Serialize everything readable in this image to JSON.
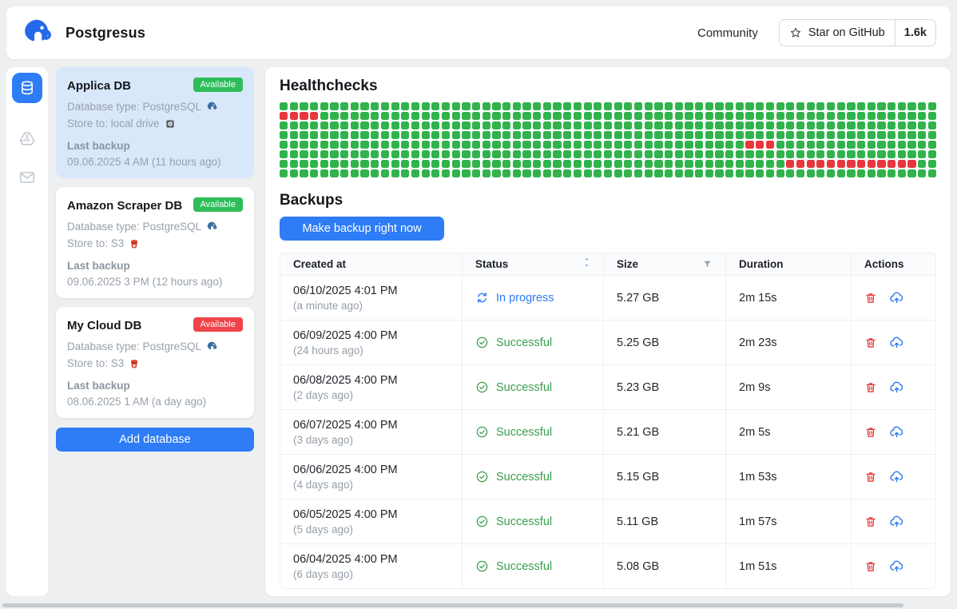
{
  "header": {
    "app_name": "Postgresus",
    "community_label": "Community",
    "github": {
      "star_label": "Star on GitHub",
      "star_count": "1.6k"
    }
  },
  "nav_rail": {
    "items": [
      {
        "icon": "database-icon",
        "active": true
      },
      {
        "icon": "google-drive-icon",
        "active": false
      },
      {
        "icon": "mail-icon",
        "active": false
      }
    ],
    "active_color": "#2e7cf6"
  },
  "database_panel": {
    "cards": [
      {
        "name": "Applica DB",
        "badge": "Available",
        "badge_color": "#2ebd59",
        "db_type": "Database type: PostgreSQL",
        "store": "Store to: local drive",
        "store_icon": "hard-drive-icon",
        "last_backup_label": "Last backup",
        "last_backup": "09.06.2025 4 AM (11 hours ago)",
        "selected": true
      },
      {
        "name": "Amazon Scraper DB",
        "badge": "Available",
        "badge_color": "#2ebd59",
        "db_type": "Database type: PostgreSQL",
        "store": "Store to: S3",
        "store_icon": "s3-icon",
        "last_backup_label": "Last backup",
        "last_backup": "09.06.2025 3 PM (12 hours ago)",
        "selected": false
      },
      {
        "name": "My Cloud DB",
        "badge": "Available",
        "badge_color": "#f04349",
        "db_type": "Database type: PostgreSQL",
        "store": "Store to: S3",
        "store_icon": "s3-icon",
        "last_backup_label": "Last backup",
        "last_backup": "08.06.2025 1 AM (a day ago)",
        "selected": false
      }
    ],
    "add_button_label": "Add database"
  },
  "healthchecks": {
    "title": "Healthchecks",
    "rows": 8,
    "cols": 65,
    "ok_color": "#31b34c",
    "fail_color": "#e8363d",
    "failures": [
      [
        1,
        0
      ],
      [
        1,
        1
      ],
      [
        1,
        2
      ],
      [
        1,
        3
      ],
      [
        4,
        46
      ],
      [
        4,
        47
      ],
      [
        4,
        48
      ],
      [
        6,
        50
      ],
      [
        6,
        51
      ],
      [
        6,
        52
      ],
      [
        6,
        53
      ],
      [
        6,
        54
      ],
      [
        6,
        55
      ],
      [
        6,
        56
      ],
      [
        6,
        57
      ],
      [
        6,
        58
      ],
      [
        6,
        59
      ],
      [
        6,
        60
      ],
      [
        6,
        61
      ],
      [
        6,
        62
      ]
    ]
  },
  "backups": {
    "title": "Backups",
    "make_backup_label": "Make backup right now",
    "table": {
      "columns": [
        "Created at",
        "Status",
        "Size",
        "Duration",
        "Actions"
      ],
      "rows": [
        {
          "date": "06/10/2025 4:01 PM",
          "ago": "(a minute ago)",
          "status": "In progress",
          "status_type": "in_progress",
          "size": "5.27 GB",
          "duration": "2m 15s"
        },
        {
          "date": "06/09/2025 4:00 PM",
          "ago": "(24 hours ago)",
          "status": "Successful",
          "status_type": "successful",
          "size": "5.25 GB",
          "duration": "2m 23s"
        },
        {
          "date": "06/08/2025 4:00 PM",
          "ago": "(2 days ago)",
          "status": "Successful",
          "status_type": "successful",
          "size": "5.23 GB",
          "duration": "2m 9s"
        },
        {
          "date": "06/07/2025 4:00 PM",
          "ago": "(3 days ago)",
          "status": "Successful",
          "status_type": "successful",
          "size": "5.21 GB",
          "duration": "2m 5s"
        },
        {
          "date": "06/06/2025 4:00 PM",
          "ago": "(4 days ago)",
          "status": "Successful",
          "status_type": "successful",
          "size": "5.15 GB",
          "duration": "1m 53s"
        },
        {
          "date": "06/05/2025 4:00 PM",
          "ago": "(5 days ago)",
          "status": "Successful",
          "status_type": "successful",
          "size": "5.11 GB",
          "duration": "1m 57s"
        },
        {
          "date": "06/04/2025 4:00 PM",
          "ago": "(6 days ago)",
          "status": "Successful",
          "status_type": "successful",
          "size": "5.08 GB",
          "duration": "1m 51s"
        }
      ],
      "status_colors": {
        "in_progress": "#2e7cf6",
        "successful": "#3a9e4d"
      }
    }
  }
}
